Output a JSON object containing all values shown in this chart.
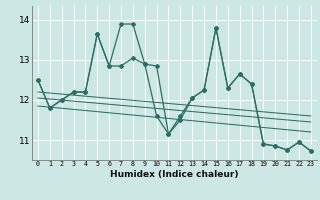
{
  "xlabel": "Humidex (Indice chaleur)",
  "background_color": "#cde8e4",
  "grid_color": "#ffffff",
  "line_color": "#2d6e63",
  "xlim": [
    -0.5,
    23.5
  ],
  "ylim": [
    10.5,
    14.35
  ],
  "yticks": [
    11,
    12,
    13,
    14
  ],
  "xticks": [
    0,
    1,
    2,
    3,
    4,
    5,
    6,
    7,
    8,
    9,
    10,
    11,
    12,
    13,
    14,
    15,
    16,
    17,
    18,
    19,
    20,
    21,
    22,
    23
  ],
  "line1_y": [
    12.5,
    11.8,
    12.0,
    12.2,
    12.2,
    13.65,
    12.85,
    12.85,
    13.05,
    12.9,
    12.85,
    11.15,
    11.6,
    12.05,
    12.25,
    13.8,
    12.3,
    12.65,
    12.4,
    10.9,
    10.85,
    10.75,
    10.95,
    10.72
  ],
  "line2_y": [
    12.5,
    11.8,
    12.0,
    12.2,
    12.2,
    13.65,
    12.85,
    13.9,
    13.9,
    12.9,
    11.6,
    11.15,
    11.5,
    12.05,
    12.25,
    13.8,
    12.3,
    12.65,
    12.4,
    10.9,
    10.85,
    10.75,
    10.95,
    10.72
  ],
  "trend1_x0": 0,
  "trend1_y0": 12.05,
  "trend1_x1": 23,
  "trend1_y1": 11.45,
  "trend2_x0": 0,
  "trend2_y0": 11.85,
  "trend2_x1": 23,
  "trend2_y1": 11.2,
  "trend3_x0": 0,
  "trend3_y0": 12.2,
  "trend3_x1": 23,
  "trend3_y1": 11.6
}
